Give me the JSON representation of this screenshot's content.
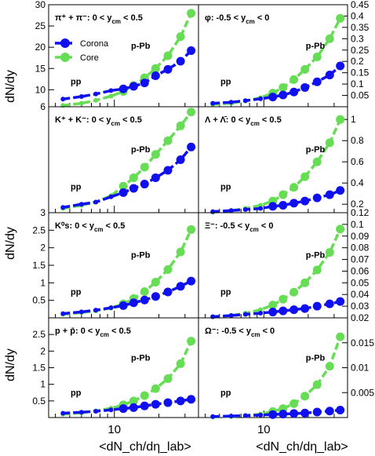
{
  "chart_data": {
    "type": "line",
    "x_axis_label": "<dN_ch/dη_lab>",
    "y_axis_label": "dN/dy",
    "x_tick_label": "10",
    "legend": [
      {
        "name": "Corona",
        "color": "#1010ee"
      },
      {
        "name": "Core",
        "color": "#66dd55"
      }
    ],
    "panels": [
      {
        "id": "pion",
        "label_main": "π⁺ + π⁻: 0 < y",
        "label_sub": "cm",
        "label_tail": " < 0.5",
        "annotations": [
          "pp",
          "p-Pb"
        ],
        "y_axis_side": "left",
        "ylim": [
          6,
          30
        ],
        "yticks": [
          6,
          10,
          15,
          20,
          25,
          30
        ],
        "series": [
          {
            "name": "Corona",
            "x": [
              4.5,
              6.0,
              7.5,
              9.5,
              11.5,
              13.5,
              16.0,
              19.0,
              23.0,
              28.0,
              33.0
            ],
            "y": [
              7.8,
              8.4,
              9.0,
              9.8,
              10.2,
              10.8,
              11.6,
              13.3,
              14.8,
              16.7,
              19.2
            ]
          },
          {
            "name": "Core",
            "x": [
              4.5,
              6.0,
              7.5,
              9.5,
              11.5,
              13.5,
              16.0,
              19.0,
              23.0,
              28.0,
              33.0
            ],
            "y": [
              6.3,
              6.8,
              7.5,
              8.5,
              9.6,
              11.0,
              12.8,
              15.0,
              18.0,
              22.5,
              28.0
            ]
          }
        ]
      },
      {
        "id": "phi",
        "label_main": "φ: -0.5 < y",
        "label_sub": "cm",
        "label_tail": " < 0",
        "annotations": [
          "pp",
          "p-Pb"
        ],
        "y_axis_side": "right",
        "ylim": [
          0,
          0.45
        ],
        "yticks": [
          0.05,
          0.1,
          0.15,
          0.2,
          0.25,
          0.3,
          0.35,
          0.4,
          0.45
        ],
        "series": [
          {
            "name": "Corona",
            "x": [
              4.5,
              6.0,
              7.5,
              9.5,
              11.5,
              13.5,
              16.0,
              19.0,
              23.0,
              28.0,
              33.0
            ],
            "y": [
              0.015,
              0.02,
              0.027,
              0.035,
              0.043,
              0.052,
              0.065,
              0.085,
              0.11,
              0.14,
              0.18
            ]
          },
          {
            "name": "Core",
            "x": [
              4.5,
              6.0,
              7.5,
              9.5,
              11.5,
              13.5,
              16.0,
              19.0,
              23.0,
              28.0,
              33.0
            ],
            "y": [
              0.01,
              0.016,
              0.025,
              0.04,
              0.06,
              0.085,
              0.12,
              0.165,
              0.22,
              0.3,
              0.39
            ]
          }
        ]
      },
      {
        "id": "kaon",
        "label_main": "K⁺ + K⁻: 0 < y",
        "label_sub": "cm",
        "label_tail": " < 0.5",
        "annotations": [
          "pp",
          "p-Pb"
        ],
        "y_axis_side": "left",
        "ylim": [
          3,
          4
        ],
        "yticks": [
          3
        ],
        "series": [
          {
            "name": "Corona",
            "x": [
              4.5,
              6.0,
              7.5,
              9.5,
              11.5,
              13.5,
              16.0,
              19.0,
              23.0,
              28.0,
              33.0
            ],
            "y": [
              3.05,
              3.08,
              3.1,
              3.15,
              3.19,
              3.23,
              3.27,
              3.33,
              3.4,
              3.5,
              3.62
            ]
          },
          {
            "name": "Core",
            "x": [
              4.5,
              6.0,
              7.5,
              9.5,
              11.5,
              13.5,
              16.0,
              19.0,
              23.0,
              28.0,
              33.0
            ],
            "y": [
              3.04,
              3.07,
              3.1,
              3.16,
              3.25,
              3.33,
              3.43,
              3.55,
              3.68,
              3.82,
              3.95
            ]
          }
        ]
      },
      {
        "id": "lambda",
        "label_main": "Λ + Λ̄: 0 < y",
        "label_sub": "cm",
        "label_tail": " < 0.5",
        "annotations": [
          "pp",
          "p-Pb"
        ],
        "y_axis_side": "right",
        "ylim": [
          0.12,
          1.12
        ],
        "yticks": [
          0.12,
          0.2,
          0.4,
          0.6,
          0.8,
          1
        ],
        "series": [
          {
            "name": "Corona",
            "x": [
              4.5,
              6.0,
              7.5,
              9.5,
              11.5,
              13.5,
              16.0,
              19.0,
              23.0,
              28.0,
              33.0
            ],
            "y": [
              0.13,
              0.14,
              0.15,
              0.16,
              0.18,
              0.19,
              0.21,
              0.23,
              0.26,
              0.29,
              0.33
            ]
          },
          {
            "name": "Core",
            "x": [
              4.5,
              6.0,
              7.5,
              9.5,
              11.5,
              13.5,
              16.0,
              19.0,
              23.0,
              28.0,
              33.0
            ],
            "y": [
              0.125,
              0.14,
              0.16,
              0.19,
              0.23,
              0.29,
              0.36,
              0.46,
              0.6,
              0.78,
              1.0
            ]
          }
        ]
      },
      {
        "id": "k0s",
        "label_main": "K⁰s: 0 < y",
        "label_sub": "cm",
        "label_tail": " < 0.5",
        "annotations": [
          "pp",
          "p-Pb"
        ],
        "y_axis_side": "left",
        "ylim": [
          0,
          3
        ],
        "yticks": [
          0.5,
          1,
          1.5,
          2,
          2.5
        ],
        "series": [
          {
            "name": "Corona",
            "x": [
              4.5,
              6.0,
              7.5,
              9.5,
              11.5,
              13.5,
              16.0,
              19.0,
              23.0,
              28.0,
              33.0
            ],
            "y": [
              0.12,
              0.17,
              0.22,
              0.29,
              0.35,
              0.43,
              0.51,
              0.61,
              0.74,
              0.9,
              1.05
            ]
          },
          {
            "name": "Core",
            "x": [
              4.5,
              6.0,
              7.5,
              9.5,
              11.5,
              13.5,
              16.0,
              19.0,
              23.0,
              28.0,
              33.0
            ],
            "y": [
              0.1,
              0.15,
              0.2,
              0.28,
              0.4,
              0.55,
              0.75,
              1.02,
              1.38,
              1.88,
              2.52
            ]
          }
        ]
      },
      {
        "id": "xi",
        "label_main": "Ξ⁻: -0.5 < y",
        "label_sub": "cm",
        "label_tail": " < 0",
        "annotations": [
          "pp",
          "p-Pb"
        ],
        "y_axis_side": "right",
        "ylim": [
          0.02,
          0.11
        ],
        "yticks": [
          0.02,
          0.03,
          0.04,
          0.05,
          0.06,
          0.07,
          0.08,
          0.09,
          0.1
        ],
        "series": [
          {
            "name": "Corona",
            "x": [
              4.5,
              6.0,
              7.5,
              9.5,
              11.5,
              13.5,
              16.0,
              19.0,
              23.0,
              28.0,
              33.0
            ],
            "y": [
              0.021,
              0.022,
              0.023,
              0.024,
              0.025,
              0.026,
              0.027,
              0.028,
              0.03,
              0.032,
              0.034
            ]
          },
          {
            "name": "Core",
            "x": [
              4.5,
              6.0,
              7.5,
              9.5,
              11.5,
              13.5,
              16.0,
              19.0,
              23.0,
              28.0,
              33.0
            ],
            "y": [
              0.021,
              0.022,
              0.024,
              0.027,
              0.031,
              0.036,
              0.042,
              0.05,
              0.061,
              0.076,
              0.096
            ]
          }
        ]
      },
      {
        "id": "proton",
        "label_main": "p + p̄: 0 < y",
        "label_sub": "cm",
        "label_tail": " < 0.5",
        "annotations": [
          "pp",
          "p-Pb"
        ],
        "y_axis_side": "left",
        "ylim": [
          0,
          3
        ],
        "yticks": [
          0.5,
          1,
          1.5,
          2,
          2.5
        ],
        "series": [
          {
            "name": "Corona",
            "x": [
              4.5,
              6.0,
              7.5,
              9.5,
              11.5,
              13.5,
              16.0,
              19.0,
              23.0,
              28.0,
              33.0
            ],
            "y": [
              0.13,
              0.16,
              0.19,
              0.23,
              0.27,
              0.3,
              0.35,
              0.4,
              0.45,
              0.5,
              0.55
            ]
          },
          {
            "name": "Core",
            "x": [
              4.5,
              6.0,
              7.5,
              9.5,
              11.5,
              13.5,
              16.0,
              19.0,
              23.0,
              28.0,
              33.0
            ],
            "y": [
              0.1,
              0.14,
              0.2,
              0.28,
              0.38,
              0.5,
              0.66,
              0.87,
              1.17,
              1.62,
              2.3
            ]
          }
        ]
      },
      {
        "id": "omega",
        "label_main": "Ω⁻: -0.5 < y",
        "label_sub": "cm",
        "label_tail": " < 0",
        "annotations": [
          "pp",
          "p-Pb"
        ],
        "y_axis_side": "right",
        "ylim": [
          0,
          0.02
        ],
        "yticks": [
          0.005,
          0.01,
          0.015
        ],
        "series": [
          {
            "name": "Corona",
            "x": [
              4.5,
              6.0,
              7.5,
              9.5,
              11.5,
              13.5,
              16.0,
              19.0,
              23.0,
              28.0,
              33.0
            ],
            "y": [
              0.0002,
              0.0003,
              0.0004,
              0.0005,
              0.0006,
              0.0007,
              0.0008,
              0.0009,
              0.0011,
              0.0013,
              0.0015
            ]
          },
          {
            "name": "Core",
            "x": [
              4.5,
              6.0,
              7.5,
              9.5,
              11.5,
              13.5,
              16.0,
              19.0,
              23.0,
              28.0,
              33.0
            ],
            "y": [
              0.0001,
              0.0002,
              0.0004,
              0.0007,
              0.0012,
              0.0018,
              0.0028,
              0.0043,
              0.0066,
              0.0103,
              0.0162
            ]
          }
        ]
      }
    ]
  }
}
